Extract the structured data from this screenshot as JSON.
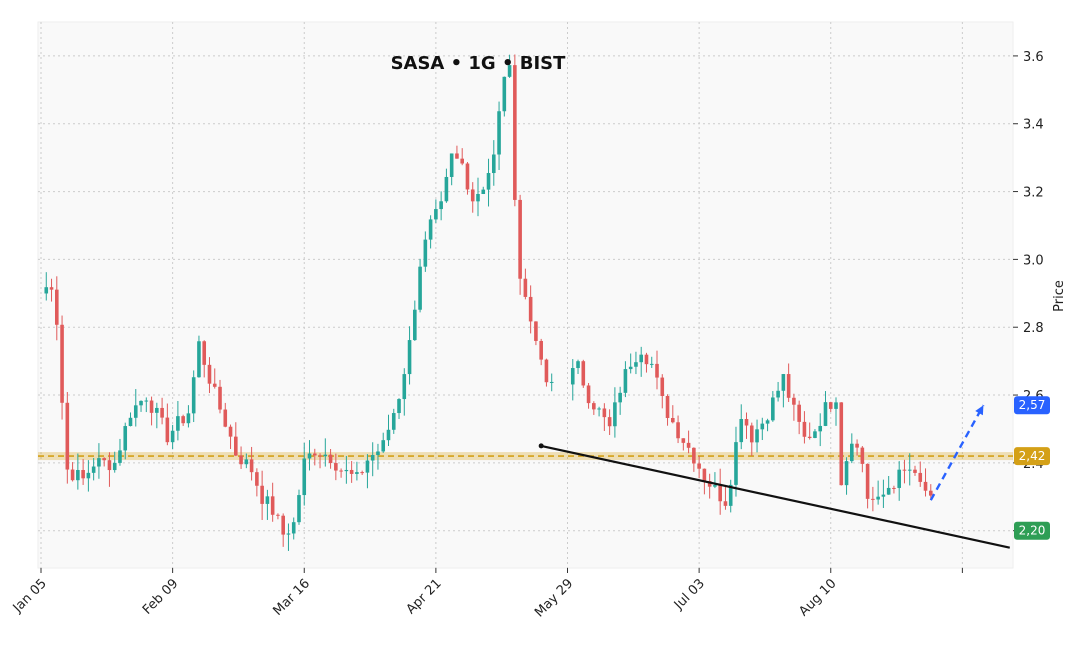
{
  "chart_data": {
    "type": "candlestick",
    "title": "SASA • 1G • BIST",
    "ylabel": "Price",
    "xlabel": "",
    "ylim": [
      2.09,
      3.7
    ],
    "y_ticks": [
      2.2,
      2.4,
      2.6,
      2.8,
      3.0,
      3.2,
      3.4,
      3.6
    ],
    "y_tick_labels": [
      "2.2",
      "2.4",
      "2.6",
      "2.8",
      "3.0",
      "3.2",
      "3.4",
      "3.6"
    ],
    "x_tick_labels": [
      {
        "index": 0,
        "label": "Jan 05"
      },
      {
        "index": 25,
        "label": "Feb 09"
      },
      {
        "index": 50,
        "label": "Mar 16"
      },
      {
        "index": 75,
        "label": "Apr 21"
      },
      {
        "index": 100,
        "label": "May 29"
      },
      {
        "index": 125,
        "label": "Jul 03"
      },
      {
        "index": 150,
        "label": "Aug 10"
      },
      {
        "index": 175,
        "label": ""
      }
    ],
    "grid": true,
    "colors": {
      "up": "#26a69a",
      "down": "#e05a5a",
      "support": "#d4a017",
      "trend": "#111111",
      "projection": "#2962ff",
      "badge_blue": "#2962ff",
      "badge_gold": "#d4a017",
      "badge_green": "#2e9e55"
    },
    "anchors": [
      [
        0,
        2.9
      ],
      [
        2,
        2.93
      ],
      [
        3,
        2.82
      ],
      [
        4,
        2.58
      ],
      [
        5,
        2.38
      ],
      [
        8,
        2.35
      ],
      [
        10,
        2.4
      ],
      [
        14,
        2.4
      ],
      [
        17,
        2.55
      ],
      [
        20,
        2.6
      ],
      [
        24,
        2.48
      ],
      [
        28,
        2.55
      ],
      [
        30,
        2.75
      ],
      [
        33,
        2.6
      ],
      [
        35,
        2.52
      ],
      [
        37,
        2.43
      ],
      [
        40,
        2.38
      ],
      [
        42,
        2.3
      ],
      [
        44,
        2.26
      ],
      [
        46,
        2.19
      ],
      [
        48,
        2.22
      ],
      [
        50,
        2.4
      ],
      [
        52,
        2.44
      ],
      [
        55,
        2.42
      ],
      [
        57,
        2.38
      ],
      [
        60,
        2.35
      ],
      [
        62,
        2.41
      ],
      [
        65,
        2.45
      ],
      [
        68,
        2.6
      ],
      [
        70,
        2.75
      ],
      [
        72,
        2.99
      ],
      [
        74,
        3.1
      ],
      [
        76,
        3.15
      ],
      [
        78,
        3.3
      ],
      [
        80,
        3.28
      ],
      [
        82,
        3.18
      ],
      [
        84,
        3.22
      ],
      [
        86,
        3.3
      ],
      [
        88,
        3.55
      ],
      [
        89,
        3.55
      ],
      [
        90,
        3.2
      ],
      [
        91,
        2.95
      ],
      [
        93,
        2.82
      ],
      [
        94,
        2.78
      ],
      [
        95,
        2.68
      ],
      [
        96,
        2.64
      ],
      [
        97,
        2.62
      ],
      [
        99,
        2.64
      ],
      [
        100,
        2.65
      ],
      [
        102,
        2.68
      ],
      [
        104,
        2.6
      ],
      [
        106,
        2.55
      ],
      [
        108,
        2.5
      ],
      [
        110,
        2.62
      ],
      [
        112,
        2.7
      ],
      [
        114,
        2.74
      ],
      [
        116,
        2.69
      ],
      [
        118,
        2.58
      ],
      [
        120,
        2.52
      ],
      [
        122,
        2.47
      ],
      [
        124,
        2.42
      ],
      [
        126,
        2.36
      ],
      [
        128,
        2.32
      ],
      [
        130,
        2.29
      ],
      [
        131,
        2.36
      ],
      [
        133,
        2.55
      ],
      [
        135,
        2.48
      ],
      [
        137,
        2.52
      ],
      [
        139,
        2.58
      ],
      [
        141,
        2.65
      ],
      [
        143,
        2.55
      ],
      [
        145,
        2.47
      ],
      [
        147,
        2.5
      ],
      [
        149,
        2.56
      ],
      [
        151,
        2.6
      ],
      [
        152,
        2.35
      ],
      [
        154,
        2.48
      ],
      [
        156,
        2.4
      ],
      [
        157,
        2.3
      ],
      [
        159,
        2.28
      ],
      [
        161,
        2.33
      ],
      [
        163,
        2.36
      ],
      [
        165,
        2.38
      ],
      [
        166,
        2.35
      ],
      [
        168,
        2.32
      ],
      [
        169,
        2.28
      ]
    ],
    "gaps": [
      [
        97,
        101
      ]
    ],
    "support_level": 2.42,
    "trendline": {
      "x0": 95,
      "y0": 2.45,
      "x1": 184,
      "y1": 2.15
    },
    "projection": {
      "x0": 169,
      "y0": 2.29,
      "x1": 179,
      "y1": 2.57
    },
    "badges": [
      {
        "label": "2,57",
        "value": 2.57,
        "color": "#2962ff"
      },
      {
        "label": "2,42",
        "value": 2.42,
        "color": "#d4a017"
      },
      {
        "label": "2,20",
        "value": 2.2,
        "color": "#2e9e55"
      }
    ]
  }
}
